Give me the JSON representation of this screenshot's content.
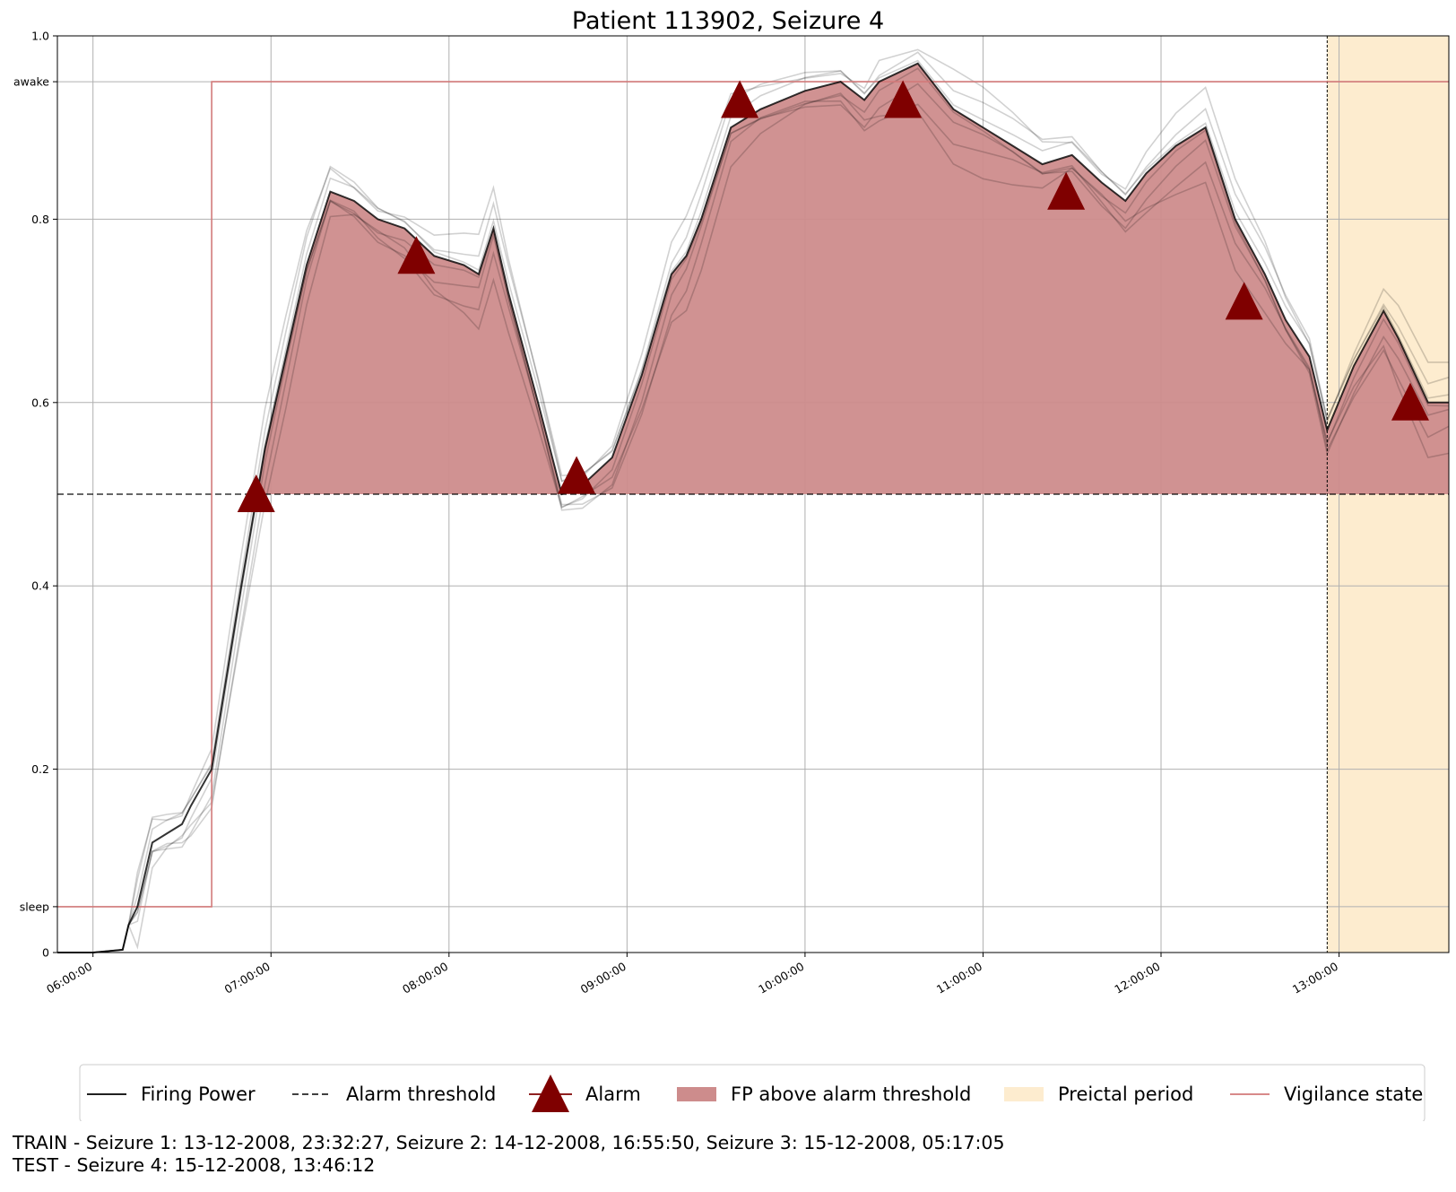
{
  "chart_data": {
    "type": "line",
    "title": "Patient 113902, Seizure 4",
    "xlabel": "",
    "ylabel": "",
    "x_ticks": [
      "06:00:00",
      "07:00:00",
      "08:00:00",
      "09:00:00",
      "10:00:00",
      "11:00:00",
      "12:00:00",
      "13:00:00"
    ],
    "y_ticks": [
      {
        "value": 0,
        "label": "0"
      },
      {
        "value": 0.05,
        "label": "sleep"
      },
      {
        "value": 0.2,
        "label": "0.2"
      },
      {
        "value": 0.4,
        "label": "0.4"
      },
      {
        "value": 0.6,
        "label": "0.6"
      },
      {
        "value": 0.8,
        "label": "0.8"
      },
      {
        "value": 0.95,
        "label": "awake"
      },
      {
        "value": 1.0,
        "label": "1.0"
      }
    ],
    "xlim": [
      "05:48:00",
      "13:37:00"
    ],
    "ylim": [
      0,
      1.0
    ],
    "grid": true,
    "alarm_threshold": 0.5,
    "preictal_period": [
      "12:56:00",
      "13:37:00"
    ],
    "series": [
      {
        "name": "Firing Power",
        "color": "#000000",
        "points": [
          [
            "05:48",
            0.0
          ],
          [
            "06:00",
            0.0
          ],
          [
            "06:10",
            0.003
          ],
          [
            "06:12",
            0.03
          ],
          [
            "06:15",
            0.05
          ],
          [
            "06:20",
            0.12
          ],
          [
            "06:25",
            0.13
          ],
          [
            "06:30",
            0.14
          ],
          [
            "06:33",
            0.16
          ],
          [
            "06:40",
            0.2
          ],
          [
            "06:50",
            0.4
          ],
          [
            "06:58",
            0.55
          ],
          [
            "07:05",
            0.65
          ],
          [
            "07:12",
            0.75
          ],
          [
            "07:20",
            0.83
          ],
          [
            "07:28",
            0.82
          ],
          [
            "07:36",
            0.8
          ],
          [
            "07:45",
            0.79
          ],
          [
            "07:55",
            0.76
          ],
          [
            "08:05",
            0.75
          ],
          [
            "08:10",
            0.74
          ],
          [
            "08:15",
            0.79
          ],
          [
            "08:20",
            0.72
          ],
          [
            "08:30",
            0.6
          ],
          [
            "08:38",
            0.5
          ],
          [
            "08:45",
            0.51
          ],
          [
            "08:55",
            0.54
          ],
          [
            "09:05",
            0.63
          ],
          [
            "09:15",
            0.74
          ],
          [
            "09:20",
            0.76
          ],
          [
            "09:25",
            0.8
          ],
          [
            "09:35",
            0.9
          ],
          [
            "09:45",
            0.92
          ],
          [
            "10:00",
            0.94
          ],
          [
            "10:12",
            0.95
          ],
          [
            "10:20",
            0.93
          ],
          [
            "10:25",
            0.95
          ],
          [
            "10:38",
            0.97
          ],
          [
            "10:50",
            0.92
          ],
          [
            "11:00",
            0.9
          ],
          [
            "11:10",
            0.88
          ],
          [
            "11:20",
            0.86
          ],
          [
            "11:30",
            0.87
          ],
          [
            "11:40",
            0.84
          ],
          [
            "11:48",
            0.82
          ],
          [
            "11:55",
            0.85
          ],
          [
            "12:05",
            0.88
          ],
          [
            "12:15",
            0.9
          ],
          [
            "12:25",
            0.8
          ],
          [
            "12:35",
            0.74
          ],
          [
            "12:42",
            0.69
          ],
          [
            "12:50",
            0.65
          ],
          [
            "12:56",
            0.57
          ],
          [
            "13:05",
            0.64
          ],
          [
            "13:15",
            0.7
          ],
          [
            "13:20",
            0.67
          ],
          [
            "13:30",
            0.6
          ],
          [
            "13:37",
            0.6
          ]
        ]
      },
      {
        "name": "Vigilance state",
        "color": "#d27a7a",
        "points": [
          [
            "05:48",
            "sleep"
          ],
          [
            "06:40",
            "sleep"
          ],
          [
            "06:40",
            "awake"
          ],
          [
            "13:37",
            "awake"
          ]
        ]
      }
    ],
    "alarms": [
      {
        "time": "06:55",
        "value": 0.5
      },
      {
        "time": "07:49",
        "value": 0.76
      },
      {
        "time": "08:43",
        "value": 0.52
      },
      {
        "time": "09:38",
        "value": 0.93
      },
      {
        "time": "10:33",
        "value": 0.93
      },
      {
        "time": "11:28",
        "value": 0.83
      },
      {
        "time": "12:28",
        "value": 0.71
      },
      {
        "time": "13:24",
        "value": 0.6
      }
    ],
    "legend": {
      "position": "bottom",
      "entries": [
        {
          "label": "Firing Power",
          "style": "solid-line",
          "color": "#000000"
        },
        {
          "label": "Alarm threshold",
          "style": "dashed-line",
          "color": "#000000"
        },
        {
          "label": "Alarm",
          "style": "triangle-marker",
          "color": "#7f0000"
        },
        {
          "label": "FP above alarm threshold",
          "style": "filled-patch",
          "color": "#cd8c8c"
        },
        {
          "label": "Preictal period",
          "style": "filled-patch",
          "color": "#fdeccf"
        },
        {
          "label": "Vigilance state",
          "style": "solid-line",
          "color": "#d27a7a"
        }
      ]
    }
  },
  "footer": {
    "train_line": "TRAIN - Seizure 1: 13-12-2008, 23:32:27, Seizure 2: 14-12-2008, 16:55:50, Seizure 3: 15-12-2008, 05:17:05",
    "test_line": "TEST - Seizure 4: 15-12-2008, 13:46:12"
  },
  "colors": {
    "fp_line": "#000000",
    "fp_fill": "#cd8c8c",
    "alarm": "#7f0000",
    "preictal": "#fdeccf",
    "vigilance": "#d27a7a",
    "grid": "#b0b0b0"
  }
}
